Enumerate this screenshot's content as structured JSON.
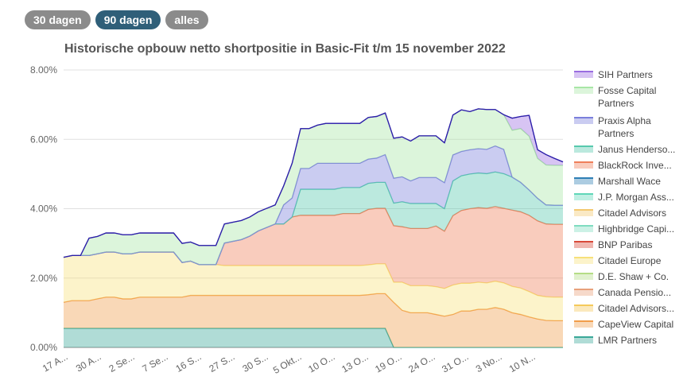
{
  "range_buttons": {
    "d30": "30 dagen",
    "d90": "90 dagen",
    "all": "alles",
    "active": "90 dagen"
  },
  "chart_data": {
    "type": "area",
    "stacked": true,
    "title": "Historische opbouw netto shortpositie in Basic-Fit t/m 15 november 2022",
    "xlabel": "",
    "ylabel": "",
    "ylim": [
      0,
      8
    ],
    "y_ticks": [
      "0.00%",
      "2.00%",
      "4.00%",
      "6.00%",
      "8.00%"
    ],
    "x_tick_labels": [
      "17 A...",
      "30 A...",
      "2 Se...",
      "7 Se...",
      "16 S...",
      "27 S...",
      "30 S...",
      "5 Okt...",
      "10 O...",
      "13 O...",
      "19 O...",
      "24 O...",
      "31 O...",
      "3 No...",
      "10 N..."
    ],
    "grid": true,
    "legend_position": "right",
    "series": [
      {
        "name": "LMR Partners",
        "color": "#3aa898",
        "values": [
          0.55,
          0.55,
          0.55,
          0.55,
          0.55,
          0.55,
          0.55,
          0.55,
          0.55,
          0.55,
          0.55,
          0.55,
          0.55,
          0.55,
          0.55,
          0.55,
          0.55,
          0.55,
          0.55,
          0.55,
          0.55,
          0.55,
          0.55,
          0.55,
          0.55,
          0.55,
          0.55,
          0.55,
          0.55,
          0.55,
          0.55,
          0.55,
          0.55,
          0.55,
          0.55,
          0.55,
          0.55,
          0.55,
          0.55,
          0,
          0,
          0,
          0,
          0,
          0,
          0,
          0,
          0,
          0,
          0,
          0,
          0,
          0,
          0,
          0,
          0,
          0,
          0,
          0,
          0
        ]
      },
      {
        "name": "CapeView Capital",
        "color": "#f19d4a",
        "values": [
          0.75,
          0.8,
          0.8,
          0.8,
          0.85,
          0.9,
          0.9,
          0.85,
          0.85,
          0.9,
          0.9,
          0.9,
          0.9,
          0.9,
          0.9,
          0.95,
          0.95,
          0.95,
          0.95,
          0.95,
          0.95,
          0.95,
          0.95,
          0.95,
          0.95,
          0.95,
          0.95,
          0.95,
          0.95,
          0.95,
          0.95,
          0.95,
          0.95,
          0.95,
          0.95,
          0.95,
          0.97,
          1.0,
          1.0,
          1.3,
          1.07,
          1.0,
          1.0,
          1.0,
          0.95,
          0.9,
          0.95,
          1.05,
          1.05,
          1.1,
          1.1,
          1.15,
          1.1,
          1.0,
          0.95,
          0.88,
          0.82,
          0.78,
          0.77,
          0.77
        ]
      },
      {
        "name": "Citadel Advisors...",
        "color": "#f5c95a",
        "values": [
          0,
          0,
          0,
          0,
          0,
          0,
          0,
          0,
          0,
          0,
          0,
          0,
          0,
          0,
          0,
          0,
          0,
          0,
          0,
          0,
          0,
          0,
          0,
          0,
          0,
          0,
          0,
          0,
          0,
          0,
          0,
          0,
          0,
          0,
          0,
          0,
          0,
          0,
          0,
          0,
          0,
          0,
          0,
          0,
          0,
          0,
          0,
          0,
          0,
          0,
          0,
          0,
          0,
          0,
          0,
          0,
          0,
          0,
          0,
          0
        ]
      },
      {
        "name": "Canada Pensio...",
        "color": "#e8a07a",
        "values": [
          0,
          0,
          0,
          0,
          0,
          0,
          0,
          0,
          0,
          0,
          0,
          0,
          0,
          0,
          0,
          0,
          0,
          0,
          0,
          0,
          0,
          0,
          0,
          0,
          0,
          0,
          0,
          0,
          0,
          0,
          0,
          0,
          0,
          0,
          0,
          0,
          0,
          0,
          0,
          0,
          0,
          0,
          0,
          0,
          0,
          0,
          0,
          0,
          0,
          0,
          0,
          0,
          0,
          0,
          0,
          0,
          0,
          0,
          0,
          0
        ]
      },
      {
        "name": "D.E. Shaw + Co.",
        "color": "#b5dd86",
        "values": [
          0,
          0,
          0,
          0,
          0,
          0,
          0,
          0,
          0,
          0,
          0,
          0,
          0,
          0,
          0,
          0,
          0,
          0,
          0,
          0,
          0,
          0,
          0,
          0,
          0,
          0,
          0,
          0,
          0,
          0,
          0,
          0,
          0,
          0,
          0,
          0,
          0,
          0,
          0,
          0,
          0,
          0,
          0,
          0,
          0,
          0,
          0,
          0,
          0,
          0,
          0,
          0,
          0,
          0,
          0,
          0,
          0,
          0,
          0,
          0
        ]
      },
      {
        "name": "Citadel Europe",
        "color": "#f7e07a",
        "values": [
          1.3,
          1.3,
          1.3,
          1.3,
          1.3,
          1.3,
          1.3,
          1.3,
          1.3,
          1.3,
          1.3,
          1.3,
          1.3,
          1.3,
          1.0,
          0.99,
          0.89,
          0.89,
          0.89,
          0.86,
          0.86,
          0.86,
          0.86,
          0.86,
          0.86,
          0.86,
          0.86,
          0.86,
          0.86,
          0.86,
          0.86,
          0.86,
          0.86,
          0.86,
          0.86,
          0.86,
          0.86,
          0.86,
          0.86,
          0.58,
          0.81,
          0.78,
          0.78,
          0.78,
          0.8,
          0.8,
          0.85,
          0.8,
          0.8,
          0.78,
          0.76,
          0.76,
          0.76,
          0.76,
          0.76,
          0.73,
          0.68,
          0.68,
          0.68,
          0.68
        ]
      },
      {
        "name": "BNP Paribas",
        "color": "#d94a3a",
        "values": [
          0,
          0,
          0,
          0,
          0,
          0,
          0,
          0,
          0,
          0,
          0,
          0,
          0,
          0,
          0,
          0,
          0,
          0,
          0,
          0,
          0,
          0,
          0,
          0,
          0,
          0,
          0,
          0,
          0,
          0,
          0,
          0,
          0,
          0,
          0,
          0,
          0,
          0,
          0,
          0,
          0,
          0,
          0,
          0,
          0,
          0,
          0,
          0,
          0,
          0,
          0,
          0,
          0,
          0,
          0,
          0,
          0,
          0,
          0,
          0
        ]
      },
      {
        "name": "Highbridge Capi...",
        "color": "#7fdcc0",
        "values": [
          0,
          0,
          0,
          0,
          0,
          0,
          0,
          0,
          0,
          0,
          0,
          0,
          0,
          0,
          0,
          0,
          0,
          0,
          0,
          0,
          0,
          0,
          0,
          0,
          0,
          0,
          0,
          0,
          0,
          0,
          0,
          0,
          0,
          0,
          0,
          0,
          0,
          0,
          0,
          0,
          0,
          0,
          0,
          0,
          0,
          0,
          0,
          0,
          0,
          0,
          0,
          0,
          0,
          0,
          0,
          0,
          0,
          0,
          0,
          0
        ]
      },
      {
        "name": "Citadel Advisors",
        "color": "#f3c86f",
        "values": [
          0,
          0,
          0,
          0,
          0,
          0,
          0,
          0,
          0,
          0,
          0,
          0,
          0,
          0,
          0,
          0,
          0,
          0,
          0,
          0,
          0,
          0,
          0,
          0,
          0,
          0,
          0,
          0,
          0,
          0,
          0,
          0,
          0,
          0,
          0,
          0,
          0,
          0,
          0,
          0,
          0,
          0,
          0,
          0,
          0,
          0,
          0,
          0,
          0,
          0,
          0,
          0,
          0,
          0,
          0,
          0,
          0,
          0,
          0,
          0
        ]
      },
      {
        "name": "J.P. Morgan Ass...",
        "color": "#5fd6b8",
        "values": [
          0,
          0,
          0,
          0,
          0,
          0,
          0,
          0,
          0,
          0,
          0,
          0,
          0,
          0,
          0,
          0,
          0,
          0,
          0,
          0,
          0,
          0,
          0,
          0,
          0,
          0,
          0,
          0,
          0,
          0,
          0,
          0,
          0,
          0,
          0,
          0,
          0,
          0,
          0,
          0,
          0,
          0,
          0,
          0,
          0,
          0,
          0,
          0,
          0,
          0,
          0,
          0,
          0,
          0,
          0,
          0,
          0,
          0,
          0,
          0
        ]
      },
      {
        "name": "Marshall Wace",
        "color": "#2f7fb5",
        "values": [
          0,
          0,
          0,
          0,
          0,
          0,
          0,
          0,
          0,
          0,
          0,
          0,
          0,
          0,
          0,
          0,
          0,
          0,
          0,
          0,
          0,
          0,
          0,
          0,
          0,
          0,
          0,
          0,
          0,
          0,
          0,
          0,
          0,
          0,
          0,
          0,
          0,
          0,
          0,
          0,
          0,
          0,
          0,
          0,
          0,
          0,
          0,
          0,
          0,
          0,
          0,
          0,
          0,
          0,
          0,
          0,
          0,
          0,
          0,
          0
        ]
      },
      {
        "name": "BlackRock Inve...",
        "color": "#ef7f5a",
        "values": [
          0,
          0,
          0,
          0,
          0,
          0,
          0,
          0,
          0,
          0,
          0,
          0,
          0,
          0,
          0,
          0,
          0,
          0,
          0,
          0.65,
          0.7,
          0.75,
          0.85,
          1.0,
          1.1,
          1.2,
          1.2,
          1.4,
          1.45,
          1.45,
          1.45,
          1.45,
          1.45,
          1.5,
          1.5,
          1.5,
          1.6,
          1.6,
          1.6,
          1.63,
          1.6,
          1.65,
          1.65,
          1.65,
          1.75,
          1.65,
          2.0,
          2.1,
          2.15,
          2.15,
          2.15,
          2.15,
          2.15,
          2.2,
          2.2,
          2.2,
          2.15,
          2.1,
          2.1,
          2.1
        ]
      },
      {
        "name": "Janus Henderso...",
        "color": "#56c9ad",
        "values": [
          0,
          0,
          0,
          0,
          0,
          0,
          0,
          0,
          0,
          0,
          0,
          0,
          0,
          0,
          0,
          0,
          0,
          0,
          0,
          0,
          0,
          0,
          0,
          0,
          0,
          0,
          0,
          0,
          0.75,
          0.75,
          0.75,
          0.75,
          0.75,
          0.75,
          0.75,
          0.75,
          0.75,
          0.75,
          0.75,
          0.65,
          0.72,
          0.72,
          0.72,
          0.72,
          0.65,
          0.65,
          1.0,
          1.0,
          1.0,
          1.0,
          1.0,
          1.0,
          1.0,
          0.95,
          0.85,
          0.73,
          0.65,
          0.55,
          0.55,
          0.55
        ]
      },
      {
        "name": "Praxis Alpha Partners",
        "color": "#7a7fdc",
        "values": [
          0,
          0,
          0,
          0,
          0,
          0,
          0,
          0,
          0,
          0,
          0,
          0,
          0,
          0,
          0,
          0,
          0,
          0,
          0,
          0,
          0,
          0,
          0,
          0,
          0,
          0,
          0.55,
          0.55,
          0.6,
          0.6,
          0.75,
          0.75,
          0.75,
          0.7,
          0.7,
          0.7,
          0.7,
          0.7,
          0.8,
          0.72,
          0.72,
          0.65,
          0.75,
          0.75,
          0.75,
          0.75,
          0.75,
          0.7,
          0.7,
          0.7,
          0.7,
          0.75,
          0.7,
          0,
          0,
          0,
          0,
          0,
          0,
          0
        ]
      },
      {
        "name": "Fosse Capital Partners",
        "color": "#a8e6a6",
        "values": [
          0,
          0,
          0,
          0.5,
          0.5,
          0.55,
          0.55,
          0.55,
          0.55,
          0.55,
          0.55,
          0.55,
          0.55,
          0.55,
          0.55,
          0.55,
          0.55,
          0.55,
          0.55,
          0.55,
          0.55,
          0.55,
          0.55,
          0.55,
          0.55,
          0.55,
          0.55,
          1.0,
          1.15,
          1.15,
          1.1,
          1.15,
          1.15,
          1.15,
          1.15,
          1.15,
          1.2,
          1.2,
          1.2,
          1.15,
          1.15,
          1.15,
          1.2,
          1.2,
          1.2,
          1.15,
          1.15,
          1.2,
          1.1,
          1.15,
          1.15,
          1.05,
          1.0,
          1.35,
          1.55,
          1.55,
          1.15,
          1.15,
          1.15,
          1.15
        ]
      },
      {
        "name": "SIH Partners",
        "color": "#9a6ce0",
        "values": [
          0,
          0,
          0,
          0,
          0,
          0,
          0,
          0,
          0,
          0,
          0,
          0,
          0,
          0,
          0,
          0,
          0,
          0,
          0,
          0,
          0,
          0,
          0,
          0,
          0,
          0,
          0,
          0,
          0,
          0,
          0,
          0,
          0,
          0,
          0,
          0,
          0,
          0,
          0,
          0,
          0,
          0,
          0,
          0,
          0,
          0,
          0,
          0,
          0,
          0,
          0,
          0,
          0,
          0.35,
          0.35,
          0.6,
          0.25,
          0.3,
          0.2,
          0.1
        ]
      }
    ]
  }
}
